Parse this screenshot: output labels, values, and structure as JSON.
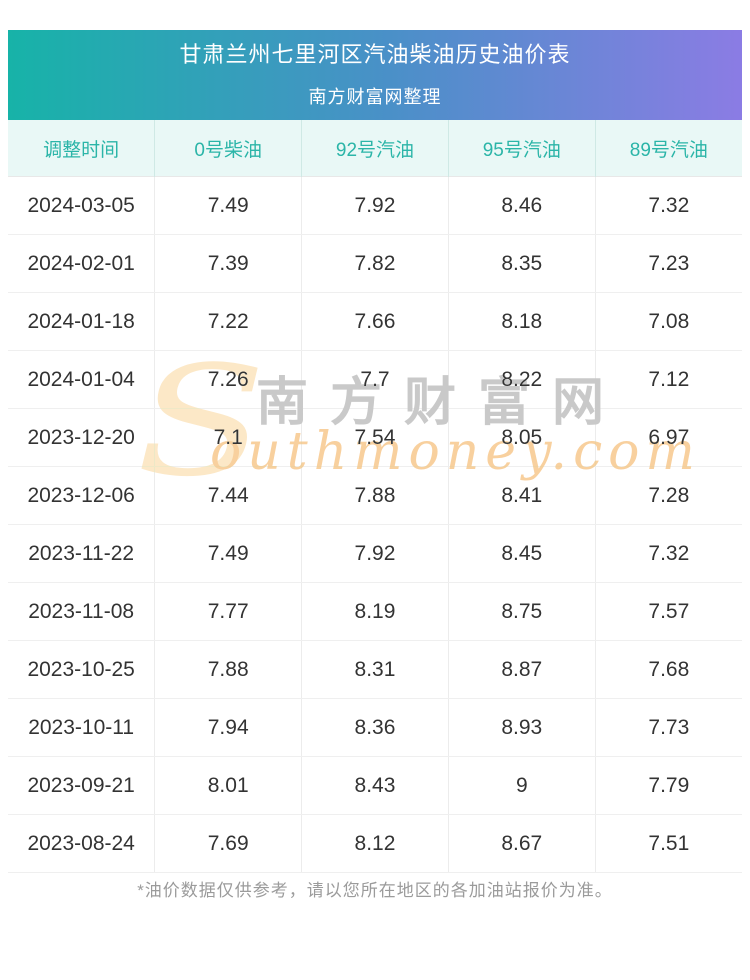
{
  "header": {
    "title": "甘肃兰州七里河区汽油柴油历史油价表",
    "subtitle": "南方财富网整理",
    "gradient_left": "#17b3a8",
    "gradient_mid": "#4a90c8",
    "gradient_right": "#8b7ce4",
    "text_color": "#ffffff"
  },
  "table": {
    "columns": [
      "调整时间",
      "0号柴油",
      "92号汽油",
      "95号汽油",
      "89号汽油"
    ],
    "rows": [
      [
        "2024-03-05",
        "7.49",
        "7.92",
        "8.46",
        "7.32"
      ],
      [
        "2024-02-01",
        "7.39",
        "7.82",
        "8.35",
        "7.23"
      ],
      [
        "2024-01-18",
        "7.22",
        "7.66",
        "8.18",
        "7.08"
      ],
      [
        "2024-01-04",
        "7.26",
        "7.7",
        "8.22",
        "7.12"
      ],
      [
        "2023-12-20",
        "7.1",
        "7.54",
        "8.05",
        "6.97"
      ],
      [
        "2023-12-06",
        "7.44",
        "7.88",
        "8.41",
        "7.28"
      ],
      [
        "2023-11-22",
        "7.49",
        "7.92",
        "8.45",
        "7.32"
      ],
      [
        "2023-11-08",
        "7.77",
        "8.19",
        "8.75",
        "7.57"
      ],
      [
        "2023-10-25",
        "7.88",
        "8.31",
        "8.87",
        "7.68"
      ],
      [
        "2023-10-11",
        "7.94",
        "8.36",
        "8.93",
        "7.73"
      ],
      [
        "2023-09-21",
        "8.01",
        "8.43",
        "9",
        "7.79"
      ],
      [
        "2023-08-24",
        "7.69",
        "8.12",
        "8.67",
        "7.51"
      ]
    ],
    "header_bg": "#e9f8f6",
    "header_text_color": "#2bb5a8"
  },
  "watermark": {
    "s_glyph": "S",
    "cn_text": "南方财富网",
    "en_text": "outhmoney.com",
    "s_color": "#fce8c7",
    "cn_color": "#c9c9c9",
    "en_color": "#f8d09e"
  },
  "footer": {
    "note": "*油价数据仅供参考，请以您所在地区的各加油站报价为准。"
  }
}
